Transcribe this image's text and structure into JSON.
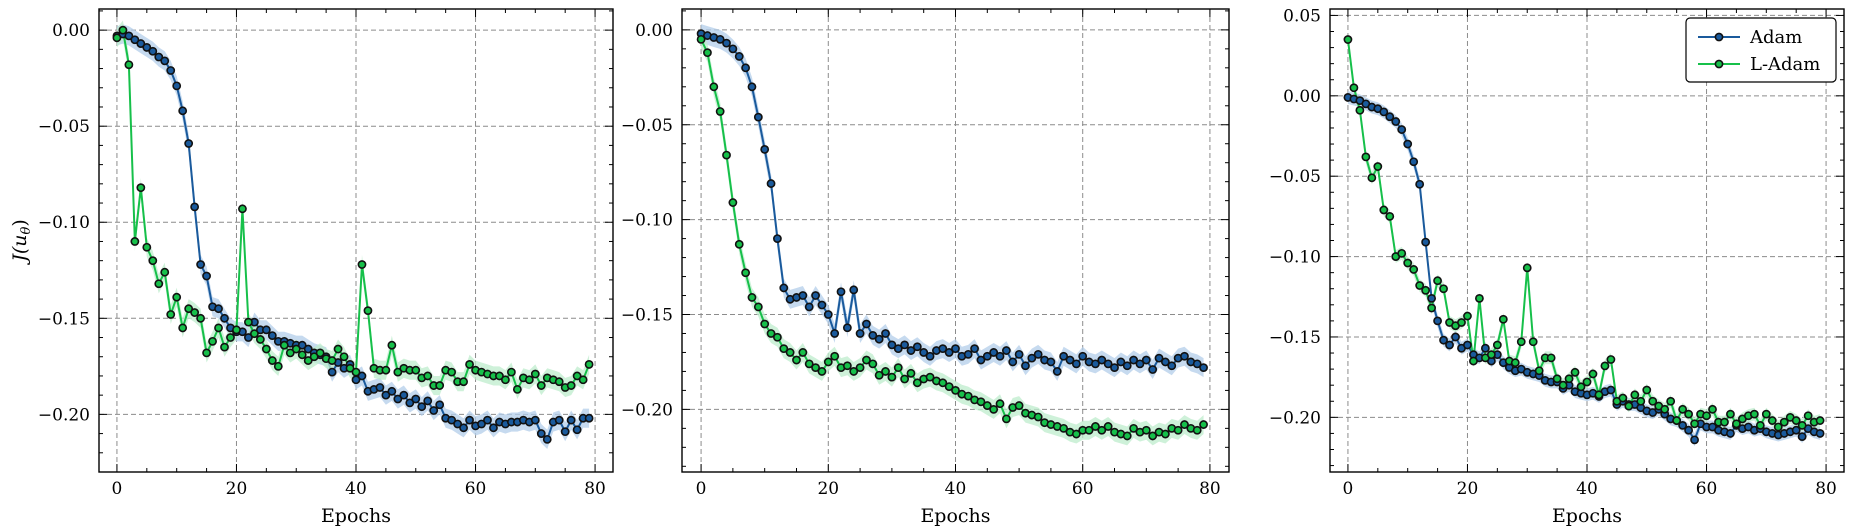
{
  "chart_data": [
    {
      "type": "line",
      "xlabel": "Epochs",
      "ylabel": "J(u",
      "ylabel_sub": "θ",
      "ylabel_end": ")",
      "xlim": [
        -3,
        83
      ],
      "ylim": [
        -0.23,
        0.011
      ],
      "xticks": [
        0,
        20,
        40,
        60,
        80
      ],
      "yticks": [
        0.0,
        -0.05,
        -0.1,
        -0.15,
        -0.2
      ],
      "ytick_labels": [
        "0.00",
        "−0.05",
        "−0.10",
        "−0.15",
        "−0.20"
      ],
      "grid": true,
      "legend": null,
      "band": 0.005,
      "series": [
        {
          "color": "#1a5a9c",
          "band_color": "#b3cdea",
          "values": [
            -0.003,
            -0.002,
            -0.003,
            -0.005,
            -0.007,
            -0.009,
            -0.011,
            -0.014,
            -0.016,
            -0.021,
            -0.029,
            -0.042,
            -0.059,
            -0.092,
            -0.122,
            -0.128,
            -0.144,
            -0.145,
            -0.15,
            -0.155,
            -0.157,
            -0.157,
            -0.16,
            -0.152,
            -0.156,
            -0.156,
            -0.159,
            -0.162,
            -0.162,
            -0.163,
            -0.164,
            -0.164,
            -0.166,
            -0.168,
            -0.169,
            -0.17,
            -0.178,
            -0.173,
            -0.176,
            -0.174,
            -0.182,
            -0.18,
            -0.188,
            -0.187,
            -0.186,
            -0.19,
            -0.188,
            -0.192,
            -0.19,
            -0.194,
            -0.192,
            -0.196,
            -0.193,
            -0.198,
            -0.195,
            -0.202,
            -0.203,
            -0.205,
            -0.207,
            -0.203,
            -0.206,
            -0.205,
            -0.203,
            -0.207,
            -0.204,
            -0.205,
            -0.204,
            -0.204,
            -0.203,
            -0.204,
            -0.203,
            -0.21,
            -0.213,
            -0.204,
            -0.203,
            -0.209,
            -0.203,
            -0.208,
            -0.202,
            -0.202
          ]
        },
        {
          "color": "#16c04a",
          "band_color": "#bdeccc",
          "values": [
            -0.004,
            0.0,
            -0.018,
            -0.11,
            -0.082,
            -0.113,
            -0.12,
            -0.132,
            -0.126,
            -0.148,
            -0.139,
            -0.155,
            -0.145,
            -0.147,
            -0.15,
            -0.168,
            -0.162,
            -0.155,
            -0.165,
            -0.16,
            -0.156,
            -0.093,
            -0.152,
            -0.158,
            -0.161,
            -0.166,
            -0.172,
            -0.175,
            -0.164,
            -0.168,
            -0.166,
            -0.169,
            -0.172,
            -0.17,
            -0.168,
            -0.171,
            -0.172,
            -0.166,
            -0.17,
            -0.176,
            -0.178,
            -0.122,
            -0.146,
            -0.176,
            -0.177,
            -0.177,
            -0.164,
            -0.178,
            -0.176,
            -0.177,
            -0.177,
            -0.181,
            -0.18,
            -0.185,
            -0.185,
            -0.177,
            -0.178,
            -0.183,
            -0.183,
            -0.174,
            -0.177,
            -0.178,
            -0.179,
            -0.18,
            -0.18,
            -0.182,
            -0.178,
            -0.187,
            -0.181,
            -0.182,
            -0.179,
            -0.185,
            -0.181,
            -0.182,
            -0.183,
            -0.186,
            -0.185,
            -0.18,
            -0.182,
            -0.174
          ]
        }
      ]
    },
    {
      "type": "line",
      "xlabel": "Epochs",
      "ylabel": "",
      "xlim": [
        -3,
        83
      ],
      "ylim": [
        -0.233,
        0.011
      ],
      "xticks": [
        0,
        20,
        40,
        60,
        80
      ],
      "yticks": [
        0.0,
        -0.05,
        -0.1,
        -0.15,
        -0.2
      ],
      "ytick_labels": [
        "0.00",
        "−0.05",
        "−0.10",
        "−0.15",
        "−0.20"
      ],
      "grid": true,
      "legend": null,
      "band": 0.005,
      "series": [
        {
          "color": "#1a5a9c",
          "band_color": "#b3cdea",
          "values": [
            -0.002,
            -0.003,
            -0.004,
            -0.005,
            -0.007,
            -0.01,
            -0.014,
            -0.02,
            -0.03,
            -0.046,
            -0.063,
            -0.081,
            -0.11,
            -0.136,
            -0.142,
            -0.141,
            -0.14,
            -0.146,
            -0.14,
            -0.145,
            -0.15,
            -0.16,
            -0.138,
            -0.157,
            -0.137,
            -0.16,
            -0.155,
            -0.161,
            -0.163,
            -0.16,
            -0.166,
            -0.168,
            -0.166,
            -0.169,
            -0.167,
            -0.17,
            -0.172,
            -0.169,
            -0.168,
            -0.17,
            -0.168,
            -0.172,
            -0.171,
            -0.168,
            -0.174,
            -0.172,
            -0.17,
            -0.172,
            -0.169,
            -0.175,
            -0.171,
            -0.177,
            -0.173,
            -0.171,
            -0.174,
            -0.175,
            -0.18,
            -0.172,
            -0.174,
            -0.176,
            -0.172,
            -0.175,
            -0.176,
            -0.174,
            -0.176,
            -0.178,
            -0.175,
            -0.177,
            -0.174,
            -0.176,
            -0.174,
            -0.179,
            -0.173,
            -0.175,
            -0.177,
            -0.173,
            -0.172,
            -0.175,
            -0.176,
            -0.178
          ]
        },
        {
          "color": "#16c04a",
          "band_color": "#bdeccc",
          "values": [
            -0.005,
            -0.012,
            -0.03,
            -0.043,
            -0.066,
            -0.091,
            -0.113,
            -0.128,
            -0.141,
            -0.146,
            -0.155,
            -0.16,
            -0.162,
            -0.168,
            -0.17,
            -0.174,
            -0.17,
            -0.176,
            -0.178,
            -0.18,
            -0.175,
            -0.172,
            -0.178,
            -0.177,
            -0.18,
            -0.178,
            -0.174,
            -0.176,
            -0.182,
            -0.18,
            -0.183,
            -0.178,
            -0.184,
            -0.181,
            -0.186,
            -0.184,
            -0.183,
            -0.185,
            -0.186,
            -0.188,
            -0.19,
            -0.192,
            -0.193,
            -0.195,
            -0.196,
            -0.198,
            -0.2,
            -0.197,
            -0.205,
            -0.199,
            -0.198,
            -0.202,
            -0.203,
            -0.204,
            -0.207,
            -0.208,
            -0.209,
            -0.21,
            -0.212,
            -0.213,
            -0.211,
            -0.211,
            -0.209,
            -0.211,
            -0.209,
            -0.212,
            -0.213,
            -0.214,
            -0.21,
            -0.212,
            -0.211,
            -0.214,
            -0.212,
            -0.213,
            -0.21,
            -0.211,
            -0.208,
            -0.21,
            -0.211,
            -0.208
          ]
        }
      ]
    },
    {
      "type": "line",
      "xlabel": "Epochs",
      "ylabel": "",
      "xlim": [
        -3,
        83
      ],
      "ylim": [
        -0.234,
        0.054
      ],
      "xticks": [
        0,
        20,
        40,
        60,
        80
      ],
      "yticks": [
        0.05,
        0.0,
        -0.05,
        -0.1,
        -0.15,
        -0.2
      ],
      "ytick_labels": [
        "0.05",
        "0.00",
        "−0.05",
        "−0.10",
        "−0.15",
        "−0.20"
      ],
      "grid": true,
      "legend": "top-right",
      "band": 0.004,
      "series": [
        {
          "name": "Adam",
          "color": "#1a5a9c",
          "band_color": "#b3cdea",
          "values": [
            -0.001,
            -0.002,
            -0.003,
            -0.005,
            -0.007,
            -0.008,
            -0.01,
            -0.013,
            -0.016,
            -0.021,
            -0.03,
            -0.041,
            -0.055,
            -0.091,
            -0.126,
            -0.14,
            -0.152,
            -0.155,
            -0.15,
            -0.157,
            -0.155,
            -0.161,
            -0.163,
            -0.157,
            -0.165,
            -0.161,
            -0.166,
            -0.169,
            -0.171,
            -0.17,
            -0.172,
            -0.173,
            -0.174,
            -0.177,
            -0.178,
            -0.178,
            -0.182,
            -0.18,
            -0.184,
            -0.185,
            -0.186,
            -0.185,
            -0.187,
            -0.184,
            -0.183,
            -0.192,
            -0.19,
            -0.192,
            -0.192,
            -0.194,
            -0.196,
            -0.197,
            -0.195,
            -0.198,
            -0.201,
            -0.202,
            -0.205,
            -0.208,
            -0.214,
            -0.204,
            -0.206,
            -0.206,
            -0.208,
            -0.209,
            -0.21,
            -0.205,
            -0.207,
            -0.206,
            -0.208,
            -0.207,
            -0.209,
            -0.21,
            -0.211,
            -0.21,
            -0.209,
            -0.208,
            -0.212,
            -0.207,
            -0.209,
            -0.21
          ]
        },
        {
          "name": "L-Adam",
          "color": "#16c04a",
          "band_color": "#bdeccc",
          "values": [
            0.035,
            0.005,
            -0.009,
            -0.038,
            -0.051,
            -0.044,
            -0.071,
            -0.075,
            -0.1,
            -0.098,
            -0.104,
            -0.108,
            -0.118,
            -0.121,
            -0.132,
            -0.115,
            -0.12,
            -0.141,
            -0.143,
            -0.141,
            -0.137,
            -0.165,
            -0.126,
            -0.163,
            -0.161,
            -0.155,
            -0.139,
            -0.165,
            -0.166,
            -0.153,
            -0.107,
            -0.153,
            -0.171,
            -0.163,
            -0.163,
            -0.176,
            -0.18,
            -0.176,
            -0.172,
            -0.181,
            -0.178,
            -0.173,
            -0.186,
            -0.168,
            -0.164,
            -0.19,
            -0.188,
            -0.193,
            -0.186,
            -0.19,
            -0.183,
            -0.19,
            -0.193,
            -0.195,
            -0.19,
            -0.202,
            -0.195,
            -0.198,
            -0.204,
            -0.198,
            -0.199,
            -0.195,
            -0.203,
            -0.203,
            -0.198,
            -0.204,
            -0.201,
            -0.199,
            -0.198,
            -0.205,
            -0.198,
            -0.202,
            -0.206,
            -0.203,
            -0.2,
            -0.202,
            -0.205,
            -0.199,
            -0.203,
            -0.202
          ]
        }
      ]
    }
  ]
}
